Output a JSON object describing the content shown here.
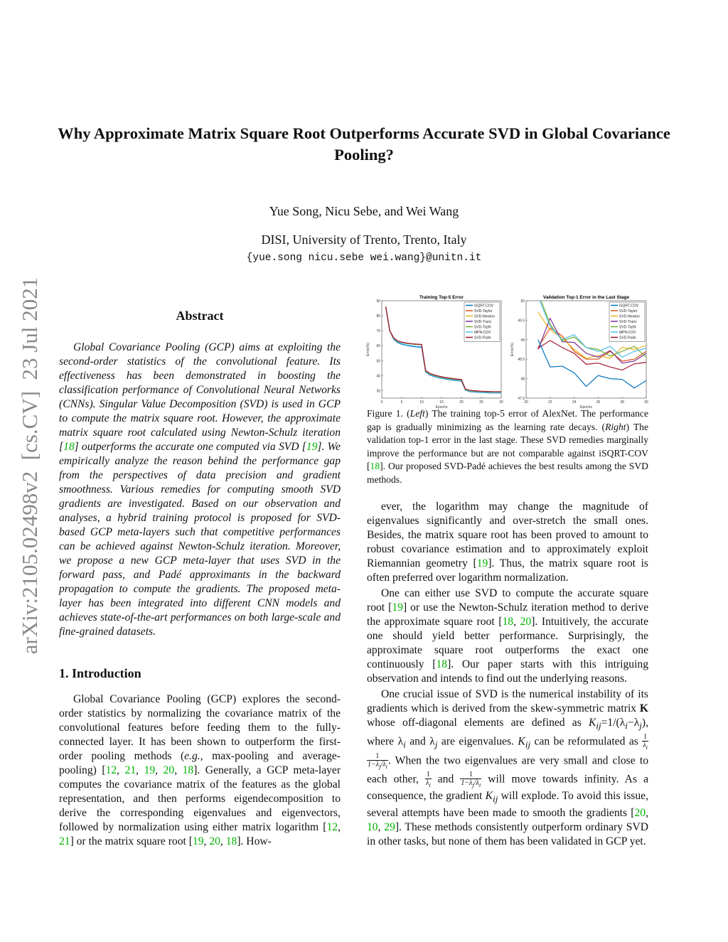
{
  "title": "Why Approximate Matrix Square Root Outperforms Accurate SVD in Global Covariance Pooling?",
  "authors": "Yue Song, Nicu Sebe, and Wei Wang",
  "affiliation": "DISI, University of Trento, Trento, Italy",
  "email": "{yue.song nicu.sebe wei.wang}@unitn.it",
  "arxiv_stamp": "arXiv:2105.02498v2  [cs.CV]  23 Jul 2021",
  "abstract_heading": "Abstract",
  "abstract": [
    [
      {
        "t": "Global Covariance Pooling (GCP) aims at exploiting the second-order statistics of the convolutional feature. Its effectiveness has been demonstrated in boosting the classification performance of Convolutional Neural Networks (CNNs). Singular Value Decomposition (SVD) is used in GCP to compute the matrix square root. However, the approximate matrix square root calculated using Newton-Schulz iteration ["
      },
      {
        "t": "18",
        "c": "cite"
      },
      {
        "t": "] outperforms the accurate one computed via SVD ["
      },
      {
        "t": "19",
        "c": "cite"
      },
      {
        "t": "]. We empirically analyze the reason behind the performance gap from the perspectives of data precision and gradient smoothness. Various remedies for computing smooth SVD gradients are investigated. Based on our observation and analyses, a hybrid training protocol is proposed for SVD-based GCP meta-layers such that competitive performances can be achieved against Newton-Schulz iteration. Moreover, we propose a new GCP meta-layer that uses SVD in the forward pass, and Padé approximants in the backward propagation to compute the gradients. The proposed meta-layer has been integrated into different CNN models and achieves state-of-the-art performances on both large-scale and fine-grained datasets."
      }
    ]
  ],
  "intro_heading": "1. Introduction",
  "intro": [
    [
      {
        "t": "Global Covariance Pooling (GCP) explores the second-order statistics by normalizing the covariance matrix of the convolutional features before feeding them to the fully-connected layer. It has been shown to outperform the first-order pooling methods ("
      },
      {
        "t": "e.g.,",
        "c": "m"
      },
      {
        "t": " max-pooling and average-pooling) ["
      },
      {
        "t": "12",
        "c": "cite"
      },
      {
        "t": ", "
      },
      {
        "t": "21",
        "c": "cite"
      },
      {
        "t": ", "
      },
      {
        "t": "19",
        "c": "cite"
      },
      {
        "t": ", "
      },
      {
        "t": "20",
        "c": "cite"
      },
      {
        "t": ", "
      },
      {
        "t": "18",
        "c": "cite"
      },
      {
        "t": "]. Generally, a GCP meta-layer computes the covariance matrix of the features as the global representation, and then performs eigendecomposition to derive the corresponding eigenvalues and eigenvectors, followed by normalization using either matrix logarithm ["
      },
      {
        "t": "12",
        "c": "cite"
      },
      {
        "t": ", "
      },
      {
        "t": "21",
        "c": "cite"
      },
      {
        "t": "] or the matrix square root ["
      },
      {
        "t": "19",
        "c": "cite"
      },
      {
        "t": ", "
      },
      {
        "t": "20",
        "c": "cite"
      },
      {
        "t": ", "
      },
      {
        "t": "18",
        "c": "cite"
      },
      {
        "t": "]. How-"
      }
    ]
  ],
  "caption": [
    [
      {
        "t": "Figure 1. ("
      },
      {
        "t": "Left",
        "c": "m"
      },
      {
        "t": ") The training top-5 error of AlexNet. The performance gap is gradually minimizing as the learning rate decays. ("
      },
      {
        "t": "Right",
        "c": "m"
      },
      {
        "t": ") The validation top-1 error in the last stage. These SVD remedies marginally improve the performance but are not comparable against iSQRT-COV ["
      },
      {
        "t": "18",
        "c": "cite"
      },
      {
        "t": "]. Our proposed SVD-Padé achieves the best results among the SVD methods."
      }
    ]
  ],
  "right_text": [
    [
      {
        "t": "ever, the logarithm may change the magnitude of eigenvalues significantly and over-stretch the small ones. Besides, the matrix square root has been proved to amount to robust covariance estimation and to approximately exploit Riemannian geometry ["
      },
      {
        "t": "19",
        "c": "cite"
      },
      {
        "t": "]. Thus, the matrix square root is often preferred over logarithm normalization."
      }
    ],
    [
      {
        "t": "One can either use SVD to compute the accurate square root ["
      },
      {
        "t": "19",
        "c": "cite"
      },
      {
        "t": "] or use the Newton-Schulz iteration method to derive the approximate square root ["
      },
      {
        "t": "18",
        "c": "cite"
      },
      {
        "t": ", "
      },
      {
        "t": "20",
        "c": "cite"
      },
      {
        "t": "]. Intuitively, the accurate one should yield better performance. Surprisingly, the approximate square root outperforms the exact one continuously ["
      },
      {
        "t": "18",
        "c": "cite"
      },
      {
        "t": "]. Our paper starts with this intriguing observation and intends to find out the underlying reasons."
      }
    ],
    [
      {
        "t": "One crucial issue of SVD is the numerical instability of its gradients which is derived from the skew-symmetric matrix "
      },
      {
        "t": "K",
        "c": "b"
      },
      {
        "t": " whose off-diagonal elements are defined as "
      },
      {
        "t": "K",
        "c": "m"
      },
      {
        "t": "ij",
        "c": "sub"
      },
      {
        "t": "=1/(λ"
      },
      {
        "t": "i",
        "c": "sub"
      },
      {
        "t": "−λ"
      },
      {
        "t": "j",
        "c": "sub"
      },
      {
        "t": "), where λ"
      },
      {
        "t": "i",
        "c": "sub"
      },
      {
        "t": " and λ"
      },
      {
        "t": "j",
        "c": "sub"
      },
      {
        "t": " are eigenvalues. "
      },
      {
        "t": "K",
        "c": "m"
      },
      {
        "t": "ij",
        "c": "sub"
      },
      {
        "t": " can be reformulated as "
      },
      {
        "c": "frac",
        "n": "1",
        "d": "λi"
      },
      {
        "c": "frac",
        "n": "1",
        "d": "1−λj/λi"
      },
      {
        "t": ". When the two eigenvalues are very small and close to each other, "
      },
      {
        "c": "frac",
        "n": "1",
        "d": "λi"
      },
      {
        "t": " and "
      },
      {
        "c": "frac",
        "n": "1",
        "d": "1−λj/λi"
      },
      {
        "t": " will move towards infinity. As a consequence, the gradient "
      },
      {
        "t": "K",
        "c": "m"
      },
      {
        "t": "ij",
        "c": "sub"
      },
      {
        "t": " will explode. To avoid this issue, several attempts have been made to smooth the gradients ["
      },
      {
        "t": "20",
        "c": "cite"
      },
      {
        "t": ", "
      },
      {
        "t": "10",
        "c": "cite"
      },
      {
        "t": ", "
      },
      {
        "t": "29",
        "c": "cite"
      },
      {
        "t": "]. These methods consistently outperform ordinary SVD in other tasks, but none of them has been validated in GCP yet."
      }
    ]
  ],
  "colors": {
    "citation": "#00b300",
    "series": [
      "#0072BD",
      "#D95319",
      "#EDB120",
      "#7E2F8E",
      "#77AC30",
      "#4DBEEE",
      "#A2142F"
    ]
  },
  "chart_data": [
    {
      "type": "line",
      "title": "Training Top-5 Error",
      "xlabel": "Epochs",
      "ylabel": "Error(%)",
      "xlim": [
        0,
        30
      ],
      "ylim": [
        25,
        90
      ],
      "xticks": [
        0,
        5,
        10,
        15,
        20,
        25,
        30
      ],
      "yticks": [
        30,
        40,
        50,
        60,
        70,
        80,
        90
      ],
      "legend": "top-right",
      "x": [
        1,
        2,
        3,
        4,
        5,
        6,
        7,
        8,
        9,
        10,
        11,
        12,
        13,
        14,
        15,
        16,
        17,
        18,
        19,
        20,
        21,
        22,
        23,
        24,
        25,
        26,
        27,
        28,
        29,
        30
      ],
      "series": [
        {
          "name": "iSQRT-COV",
          "values": [
            86,
            70,
            64,
            62,
            61,
            60.3,
            59.8,
            59.4,
            59.1,
            58.9,
            42.5,
            40.5,
            39.5,
            38.8,
            38.2,
            37.7,
            37.3,
            36.9,
            36.6,
            36.4,
            30.3,
            29.4,
            29.1,
            28.9,
            28.7,
            28.6,
            28.5,
            28.4,
            28.4,
            28.4
          ]
        },
        {
          "name": "SVD-Taylor",
          "values": [
            86,
            70,
            65,
            63,
            62.2,
            61.7,
            61.3,
            61,
            60.8,
            60.7,
            43.3,
            41.3,
            40.3,
            39.6,
            39,
            38.5,
            38.1,
            37.7,
            37.4,
            37.2,
            30.9,
            30.1,
            29.8,
            29.6,
            29.4,
            29.3,
            29.2,
            29.1,
            29.1,
            29.1
          ]
        },
        {
          "name": "SVD-Newton",
          "values": [
            86,
            70,
            65,
            63,
            62.2,
            61.7,
            61.3,
            61,
            60.8,
            60.7,
            43.3,
            41.3,
            40.3,
            39.6,
            39,
            38.5,
            38.1,
            37.7,
            37.4,
            37.2,
            30.9,
            30.1,
            29.8,
            29.6,
            29.4,
            29.3,
            29.2,
            29.1,
            29.1,
            29.1
          ]
        },
        {
          "name": "SVD-Trunc",
          "values": [
            86,
            70,
            65,
            63,
            62.2,
            61.7,
            61.3,
            61,
            60.8,
            60.7,
            43.3,
            41.3,
            40.3,
            39.6,
            39,
            38.5,
            38.1,
            37.7,
            37.4,
            37.2,
            30.9,
            30.1,
            29.8,
            29.6,
            29.4,
            29.3,
            29.2,
            29.1,
            29.1,
            29.1
          ]
        },
        {
          "name": "SVD-TopN",
          "values": [
            86,
            70,
            65,
            63,
            62.2,
            61.7,
            61.3,
            61,
            60.8,
            60.7,
            43.3,
            41.3,
            40.3,
            39.6,
            39,
            38.5,
            38.1,
            37.7,
            37.4,
            37.2,
            30.9,
            30.1,
            29.8,
            29.6,
            29.4,
            29.3,
            29.2,
            29.1,
            29.1,
            29.1
          ]
        },
        {
          "name": "MPN-COV",
          "values": [
            86,
            70,
            64.3,
            62.4,
            61.4,
            60.7,
            60.2,
            59.8,
            59.5,
            59.3,
            42.8,
            40.8,
            39.8,
            39.1,
            38.5,
            38,
            37.6,
            37.2,
            36.9,
            36.7,
            30.5,
            29.6,
            29.3,
            29.1,
            28.9,
            28.8,
            28.7,
            28.6,
            28.6,
            28.6
          ]
        },
        {
          "name": "SVD-Pade",
          "values": [
            86,
            70,
            65.2,
            63.2,
            62.4,
            61.9,
            61.5,
            61.2,
            61,
            60.9,
            43.6,
            41.6,
            40.6,
            39.9,
            39.3,
            38.8,
            38.4,
            38,
            37.7,
            37.5,
            31.1,
            30.3,
            30,
            29.8,
            29.6,
            29.5,
            29.4,
            29.3,
            29.3,
            29.3
          ]
        }
      ]
    },
    {
      "type": "line",
      "title": "Validation Top-1 Error in the Last Stage",
      "xlabel": "Epochs",
      "ylabel": "Error(%)",
      "xlim": [
        20,
        30
      ],
      "ylim": [
        47.5,
        50
      ],
      "xticks": [
        20,
        22,
        24,
        26,
        28,
        30
      ],
      "yticks": [
        47.5,
        48,
        48.5,
        49,
        49.5,
        50
      ],
      "legend": "top-right",
      "x": [
        21,
        22,
        23,
        24,
        25,
        26,
        27,
        28,
        29,
        30
      ],
      "series": [
        {
          "name": "iSQRT-COV",
          "values": [
            49.0,
            48.3,
            48.32,
            48.15,
            47.8,
            48.08,
            48.0,
            47.98,
            47.76,
            47.95
          ]
        },
        {
          "name": "SVD-Taylor",
          "values": [
            48.8,
            49.3,
            49.1,
            48.7,
            48.5,
            48.5,
            48.7,
            48.45,
            48.5,
            48.7
          ]
        },
        {
          "name": "SVD-Newton",
          "values": [
            49.7,
            49.25,
            49.05,
            48.75,
            48.52,
            48.6,
            48.52,
            48.8,
            48.75,
            48.85
          ]
        },
        {
          "name": "SVD-Trunc",
          "values": [
            48.75,
            49.55,
            48.95,
            48.93,
            48.65,
            48.55,
            48.72,
            48.4,
            48.45,
            48.65
          ]
        },
        {
          "name": "SVD-TopN",
          "values": [
            50.2,
            49.4,
            48.97,
            49.07,
            48.8,
            48.75,
            48.58,
            48.7,
            48.83,
            48.55
          ]
        },
        {
          "name": "MPN-COV",
          "values": [
            50.1,
            49.35,
            49.0,
            49.13,
            48.8,
            48.7,
            48.83,
            48.55,
            48.7,
            48.78
          ]
        },
        {
          "name": "SVD-Pade",
          "values": [
            48.78,
            48.98,
            48.8,
            48.65,
            48.37,
            48.4,
            48.3,
            48.22,
            48.38,
            48.42
          ]
        }
      ]
    }
  ]
}
